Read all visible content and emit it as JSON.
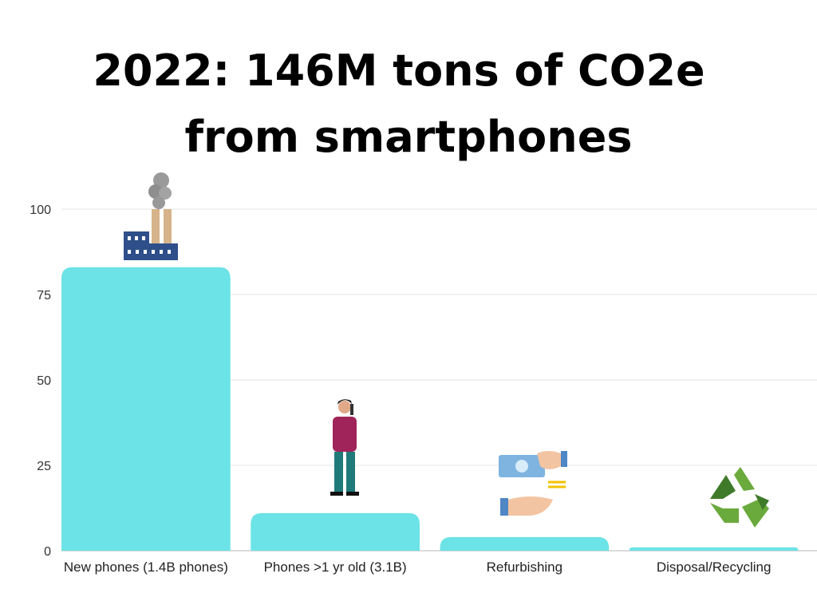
{
  "chart_data": {
    "type": "bar",
    "title": "2022: 146M tons of CO2e",
    "subtitle": "from smartphones",
    "categories": [
      "New phones (1.4B phones)",
      "Phones >1 yr old (3.1B)",
      "Refurbishing",
      "Disposal/Recycling"
    ],
    "values": [
      83,
      11,
      4,
      1
    ],
    "icons": [
      "factory-icon",
      "person-on-phone-icon",
      "money-exchange-icon",
      "recycle-icon"
    ],
    "xlabel": "",
    "ylabel": "",
    "ylim": [
      0,
      100
    ],
    "yticks": [
      0,
      25,
      50,
      75,
      100
    ],
    "grid": true,
    "bar_color": "#6ce3e6"
  }
}
